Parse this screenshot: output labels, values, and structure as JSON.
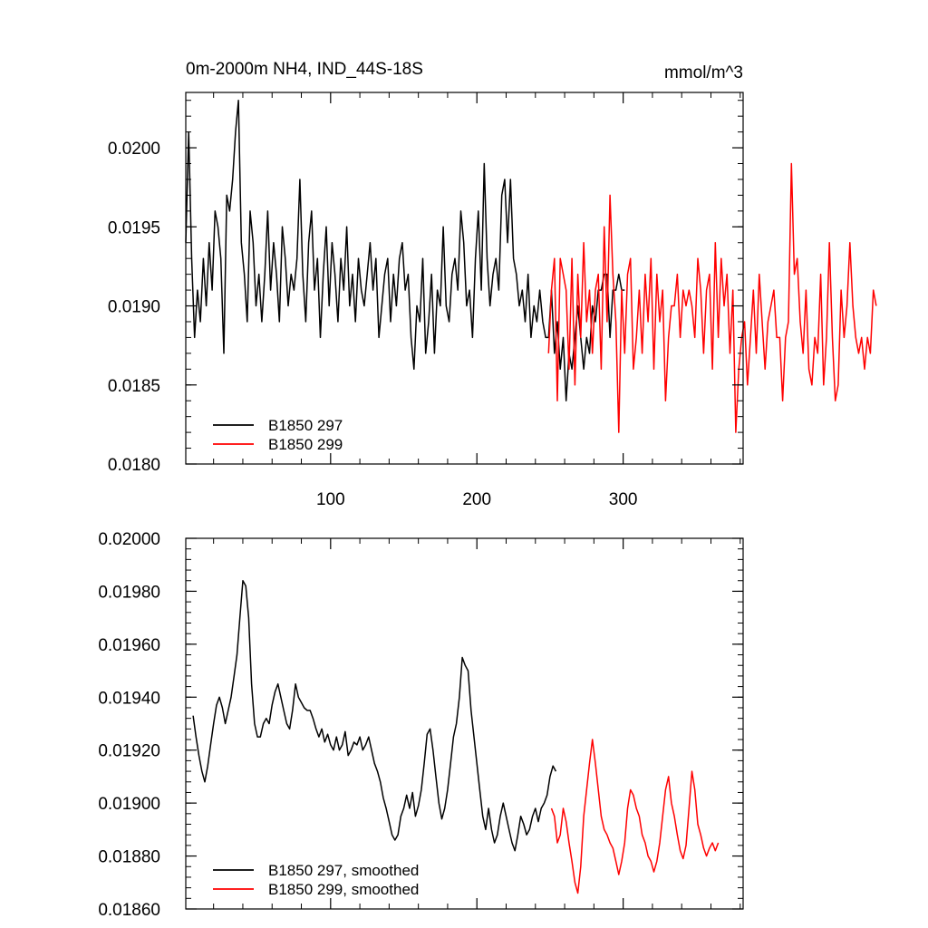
{
  "colors": {
    "series_297": "#000000",
    "series_299": "#ff0000",
    "axes": "#000000",
    "background": "#ffffff"
  },
  "chart_data": [
    {
      "type": "line",
      "title": "0m-2000m NH4, IND_44S-18S",
      "units": "mmol/m^3",
      "xlim": [
        1,
        382
      ],
      "ylim": [
        0.018,
        0.02035
      ],
      "xticks": [
        100,
        200,
        300
      ],
      "xtick_labels": [
        "100",
        "200",
        "300"
      ],
      "yticks": [
        0.018,
        0.0185,
        0.019,
        0.0195,
        0.02
      ],
      "ytick_labels": [
        "0.0180",
        "0.0185",
        "0.0190",
        "0.0195",
        "0.0200"
      ],
      "legend_position": "bottom-left",
      "series": [
        {
          "name": "B1850 297",
          "color": "#000000",
          "x_start": 1,
          "x_step": 2,
          "values": [
            0.0194,
            0.0201,
            0.0193,
            0.0188,
            0.0191,
            0.0189,
            0.0193,
            0.019,
            0.0194,
            0.0191,
            0.0196,
            0.0195,
            0.0193,
            0.0187,
            0.0197,
            0.0196,
            0.0198,
            0.0201,
            0.0203,
            0.0194,
            0.0192,
            0.0189,
            0.0196,
            0.0194,
            0.019,
            0.0192,
            0.0189,
            0.0192,
            0.0196,
            0.0191,
            0.0194,
            0.0192,
            0.0189,
            0.0195,
            0.0193,
            0.019,
            0.0192,
            0.0191,
            0.0193,
            0.0198,
            0.0192,
            0.0189,
            0.0194,
            0.0196,
            0.0191,
            0.0193,
            0.0188,
            0.0192,
            0.0195,
            0.019,
            0.0194,
            0.0192,
            0.0189,
            0.0193,
            0.0191,
            0.0195,
            0.019,
            0.0192,
            0.0189,
            0.0193,
            0.0191,
            0.019,
            0.0192,
            0.0194,
            0.0191,
            0.0193,
            0.0188,
            0.019,
            0.0192,
            0.0193,
            0.0189,
            0.0192,
            0.019,
            0.0193,
            0.0194,
            0.0191,
            0.0192,
            0.0188,
            0.0186,
            0.019,
            0.0189,
            0.0193,
            0.0187,
            0.0189,
            0.0192,
            0.0187,
            0.0191,
            0.019,
            0.0195,
            0.019,
            0.0189,
            0.0192,
            0.0193,
            0.0191,
            0.0196,
            0.0194,
            0.019,
            0.0191,
            0.0188,
            0.0193,
            0.0196,
            0.0191,
            0.0199,
            0.0193,
            0.019,
            0.0192,
            0.0193,
            0.0191,
            0.0197,
            0.0198,
            0.0194,
            0.0198,
            0.0193,
            0.0192,
            0.019,
            0.0191,
            0.0189,
            0.0192,
            0.0188,
            0.019,
            0.0189,
            0.0191,
            0.0189,
            0.0188,
            0.0188,
            0.0191,
            0.0187,
            0.0189,
            0.0186,
            0.0188,
            0.0184,
            0.0187,
            0.0186,
            0.0188,
            0.019,
            0.0188,
            0.0186,
            0.0188,
            0.0187,
            0.019,
            0.0189,
            0.0191,
            0.0191,
            0.0192,
            0.0192,
            0.0188,
            0.0191,
            0.0191,
            0.0192,
            0.0191,
            0.0191
          ]
        },
        {
          "name": "B1850 299",
          "color": "#ff0000",
          "x_start": 249,
          "x_step": 2,
          "values": [
            0.0187,
            0.0191,
            0.0193,
            0.0184,
            0.0193,
            0.0192,
            0.0191,
            0.0186,
            0.0193,
            0.0185,
            0.0192,
            0.0188,
            0.0194,
            0.0189,
            0.0191,
            0.0187,
            0.0191,
            0.0192,
            0.0186,
            0.0195,
            0.0189,
            0.0197,
            0.0192,
            0.0189,
            0.0182,
            0.0191,
            0.0187,
            0.0192,
            0.0193,
            0.0186,
            0.0188,
            0.0191,
            0.0187,
            0.0192,
            0.0189,
            0.0193,
            0.0186,
            0.0192,
            0.0189,
            0.0191,
            0.0184,
            0.0188,
            0.019,
            0.019,
            0.0192,
            0.0188,
            0.0191,
            0.019,
            0.0191,
            0.019,
            0.0188,
            0.0193,
            0.0191,
            0.0187,
            0.0191,
            0.0192,
            0.0186,
            0.0194,
            0.0188,
            0.0193,
            0.019,
            0.0192,
            0.0187,
            0.0191,
            0.0182,
            0.0186,
            0.0188,
            0.0189,
            0.0185,
            0.0188,
            0.0191,
            0.0187,
            0.0192,
            0.0189,
            0.0186,
            0.0189,
            0.019,
            0.0191,
            0.0188,
            0.0188,
            0.0184,
            0.0188,
            0.0189,
            0.0199,
            0.0192,
            0.0193,
            0.0189,
            0.0187,
            0.0191,
            0.0186,
            0.0185,
            0.0188,
            0.0187,
            0.0192,
            0.0185,
            0.0188,
            0.0194,
            0.0188,
            0.0184,
            0.0185,
            0.0191,
            0.0188,
            0.019,
            0.0194,
            0.019,
            0.0188,
            0.0187,
            0.0188,
            0.0186,
            0.0188,
            0.0187,
            0.0191,
            0.019
          ]
        }
      ]
    },
    {
      "type": "line",
      "xlim": [
        1,
        382
      ],
      "ylim": [
        0.0186,
        0.02
      ],
      "xticks": [
        100,
        200,
        300
      ],
      "xtick_labels": [
        "",
        "",
        ""
      ],
      "yticks": [
        0.0186,
        0.0188,
        0.019,
        0.0192,
        0.0194,
        0.0196,
        0.0198,
        0.02
      ],
      "ytick_labels": [
        "0.01860",
        "0.01880",
        "0.01900",
        "0.01920",
        "0.01940",
        "0.01960",
        "0.01980",
        "0.02000"
      ],
      "legend_position": "bottom-left",
      "series": [
        {
          "name": "B1850 297, smoothed",
          "color": "#000000",
          "x_start": 6,
          "x_step": 2,
          "values": [
            0.01933,
            0.01925,
            0.01918,
            0.01912,
            0.01908,
            0.01914,
            0.01922,
            0.0193,
            0.01937,
            0.0194,
            0.01936,
            0.0193,
            0.01935,
            0.0194,
            0.01948,
            0.01956,
            0.0197,
            0.01984,
            0.01982,
            0.0197,
            0.01945,
            0.0193,
            0.01925,
            0.01925,
            0.0193,
            0.01932,
            0.0193,
            0.01937,
            0.01942,
            0.01945,
            0.0194,
            0.01935,
            0.0193,
            0.01928,
            0.01935,
            0.01945,
            0.0194,
            0.01938,
            0.01936,
            0.01935,
            0.01935,
            0.01932,
            0.01928,
            0.01925,
            0.01928,
            0.01923,
            0.01926,
            0.01922,
            0.0192,
            0.01925,
            0.0192,
            0.01922,
            0.01927,
            0.01918,
            0.0192,
            0.01923,
            0.01922,
            0.01925,
            0.0192,
            0.01922,
            0.01925,
            0.0192,
            0.01915,
            0.01912,
            0.01908,
            0.01902,
            0.01898,
            0.01893,
            0.01888,
            0.01886,
            0.01888,
            0.01895,
            0.01898,
            0.01903,
            0.01898,
            0.01904,
            0.01895,
            0.01899,
            0.01905,
            0.01915,
            0.01926,
            0.01928,
            0.0192,
            0.0191,
            0.019,
            0.01894,
            0.01898,
            0.01905,
            0.01915,
            0.01925,
            0.0193,
            0.0194,
            0.01955,
            0.01952,
            0.0195,
            0.01935,
            0.01925,
            0.01915,
            0.01905,
            0.01895,
            0.0189,
            0.01898,
            0.0189,
            0.01885,
            0.01888,
            0.01895,
            0.019,
            0.01895,
            0.0189,
            0.01885,
            0.01882,
            0.01888,
            0.01895,
            0.01892,
            0.01888,
            0.0189,
            0.01895,
            0.01898,
            0.01893,
            0.01898,
            0.019,
            0.01903,
            0.0191,
            0.01914,
            0.01912
          ]
        },
        {
          "name": "B1850 299, smoothed",
          "color": "#ff0000",
          "x_start": 251,
          "x_step": 2,
          "values": [
            0.01898,
            0.01895,
            0.01885,
            0.01888,
            0.01898,
            0.01893,
            0.01885,
            0.01878,
            0.0187,
            0.01866,
            0.01876,
            0.01895,
            0.01905,
            0.01915,
            0.01924,
            0.01915,
            0.01905,
            0.01895,
            0.0189,
            0.01888,
            0.01885,
            0.01883,
            0.01878,
            0.01873,
            0.01878,
            0.01885,
            0.01898,
            0.01905,
            0.01903,
            0.01898,
            0.01895,
            0.01888,
            0.01885,
            0.0188,
            0.01878,
            0.01874,
            0.01878,
            0.01885,
            0.01895,
            0.01905,
            0.0191,
            0.019,
            0.01895,
            0.01888,
            0.01882,
            0.01879,
            0.01884,
            0.01898,
            0.01912,
            0.01905,
            0.01892,
            0.01888,
            0.01883,
            0.0188,
            0.01883,
            0.01885,
            0.01882,
            0.01885
          ]
        }
      ]
    }
  ]
}
